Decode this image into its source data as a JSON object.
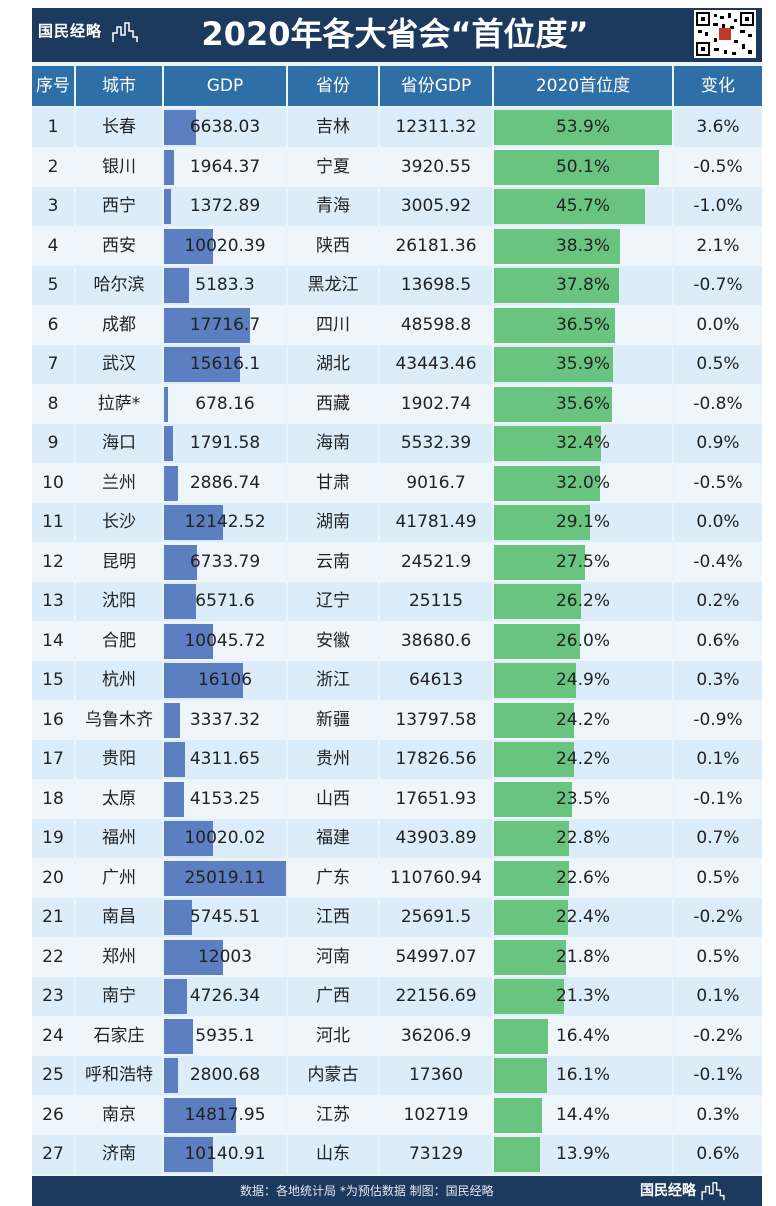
{
  "title": "2020年各大省会“首位度”",
  "logo": "国民经略",
  "source": "数据：各地统计局 *为预估数据  制图：国民经略",
  "colors": {
    "header": "#1c3a5d",
    "column_header": "#2f6fa7",
    "gdp_bar": "#5b7fc1",
    "ratio_bar": "#69c47f"
  },
  "columns": [
    "序号",
    "城市",
    "GDP",
    "省份",
    "省份GDP",
    "2020首位度",
    "变化"
  ],
  "chart_data": {
    "type": "table",
    "title": "2020年各大省会“首位度”",
    "rows": [
      {
        "rank": "1",
        "city": "长春",
        "gdp": "6638.03",
        "province": "吉林",
        "province_gdp": "12311.32",
        "ratio": "53.9%",
        "change": "3.6%"
      },
      {
        "rank": "2",
        "city": "银川",
        "gdp": "1964.37",
        "province": "宁夏",
        "province_gdp": "3920.55",
        "ratio": "50.1%",
        "change": "-0.5%"
      },
      {
        "rank": "3",
        "city": "西宁",
        "gdp": "1372.89",
        "province": "青海",
        "province_gdp": "3005.92",
        "ratio": "45.7%",
        "change": "-1.0%"
      },
      {
        "rank": "4",
        "city": "西安",
        "gdp": "10020.39",
        "province": "陕西",
        "province_gdp": "26181.36",
        "ratio": "38.3%",
        "change": "2.1%"
      },
      {
        "rank": "5",
        "city": "哈尔滨",
        "gdp": "5183.3",
        "province": "黑龙江",
        "province_gdp": "13698.5",
        "ratio": "37.8%",
        "change": "-0.7%"
      },
      {
        "rank": "6",
        "city": "成都",
        "gdp": "17716.7",
        "province": "四川",
        "province_gdp": "48598.8",
        "ratio": "36.5%",
        "change": "0.0%"
      },
      {
        "rank": "7",
        "city": "武汉",
        "gdp": "15616.1",
        "province": "湖北",
        "province_gdp": "43443.46",
        "ratio": "35.9%",
        "change": "0.5%"
      },
      {
        "rank": "8",
        "city": "拉萨*",
        "gdp": "678.16",
        "province": "西藏",
        "province_gdp": "1902.74",
        "ratio": "35.6%",
        "change": "-0.8%"
      },
      {
        "rank": "9",
        "city": "海口",
        "gdp": "1791.58",
        "province": "海南",
        "province_gdp": "5532.39",
        "ratio": "32.4%",
        "change": "0.9%"
      },
      {
        "rank": "10",
        "city": "兰州",
        "gdp": "2886.74",
        "province": "甘肃",
        "province_gdp": "9016.7",
        "ratio": "32.0%",
        "change": "-0.5%"
      },
      {
        "rank": "11",
        "city": "长沙",
        "gdp": "12142.52",
        "province": "湖南",
        "province_gdp": "41781.49",
        "ratio": "29.1%",
        "change": "0.0%"
      },
      {
        "rank": "12",
        "city": "昆明",
        "gdp": "6733.79",
        "province": "云南",
        "province_gdp": "24521.9",
        "ratio": "27.5%",
        "change": "-0.4%"
      },
      {
        "rank": "13",
        "city": "沈阳",
        "gdp": "6571.6",
        "province": "辽宁",
        "province_gdp": "25115",
        "ratio": "26.2%",
        "change": "0.2%"
      },
      {
        "rank": "14",
        "city": "合肥",
        "gdp": "10045.72",
        "province": "安徽",
        "province_gdp": "38680.6",
        "ratio": "26.0%",
        "change": "0.6%"
      },
      {
        "rank": "15",
        "city": "杭州",
        "gdp": "16106",
        "province": "浙江",
        "province_gdp": "64613",
        "ratio": "24.9%",
        "change": "0.3%"
      },
      {
        "rank": "16",
        "city": "乌鲁木齐",
        "gdp": "3337.32",
        "province": "新疆",
        "province_gdp": "13797.58",
        "ratio": "24.2%",
        "change": "-0.9%"
      },
      {
        "rank": "17",
        "city": "贵阳",
        "gdp": "4311.65",
        "province": "贵州",
        "province_gdp": "17826.56",
        "ratio": "24.2%",
        "change": "0.1%"
      },
      {
        "rank": "18",
        "city": "太原",
        "gdp": "4153.25",
        "province": "山西",
        "province_gdp": "17651.93",
        "ratio": "23.5%",
        "change": "-0.1%"
      },
      {
        "rank": "19",
        "city": "福州",
        "gdp": "10020.02",
        "province": "福建",
        "province_gdp": "43903.89",
        "ratio": "22.8%",
        "change": "0.7%"
      },
      {
        "rank": "20",
        "city": "广州",
        "gdp": "25019.11",
        "province": "广东",
        "province_gdp": "110760.94",
        "ratio": "22.6%",
        "change": "0.5%"
      },
      {
        "rank": "21",
        "city": "南昌",
        "gdp": "5745.51",
        "province": "江西",
        "province_gdp": "25691.5",
        "ratio": "22.4%",
        "change": "-0.2%"
      },
      {
        "rank": "22",
        "city": "郑州",
        "gdp": "12003",
        "province": "河南",
        "province_gdp": "54997.07",
        "ratio": "21.8%",
        "change": "0.5%"
      },
      {
        "rank": "23",
        "city": "南宁",
        "gdp": "4726.34",
        "province": "广西",
        "province_gdp": "22156.69",
        "ratio": "21.3%",
        "change": "0.1%"
      },
      {
        "rank": "24",
        "city": "石家庄",
        "gdp": "5935.1",
        "province": "河北",
        "province_gdp": "36206.9",
        "ratio": "16.4%",
        "change": "-0.2%"
      },
      {
        "rank": "25",
        "city": "呼和浩特",
        "gdp": "2800.68",
        "province": "内蒙古",
        "province_gdp": "17360",
        "ratio": "16.1%",
        "change": "-0.1%"
      },
      {
        "rank": "26",
        "city": "南京",
        "gdp": "14817.95",
        "province": "江苏",
        "province_gdp": "102719",
        "ratio": "14.4%",
        "change": "0.3%"
      },
      {
        "rank": "27",
        "city": "济南",
        "gdp": "10140.91",
        "province": "山东",
        "province_gdp": "73129",
        "ratio": "13.9%",
        "change": "0.6%"
      }
    ]
  }
}
